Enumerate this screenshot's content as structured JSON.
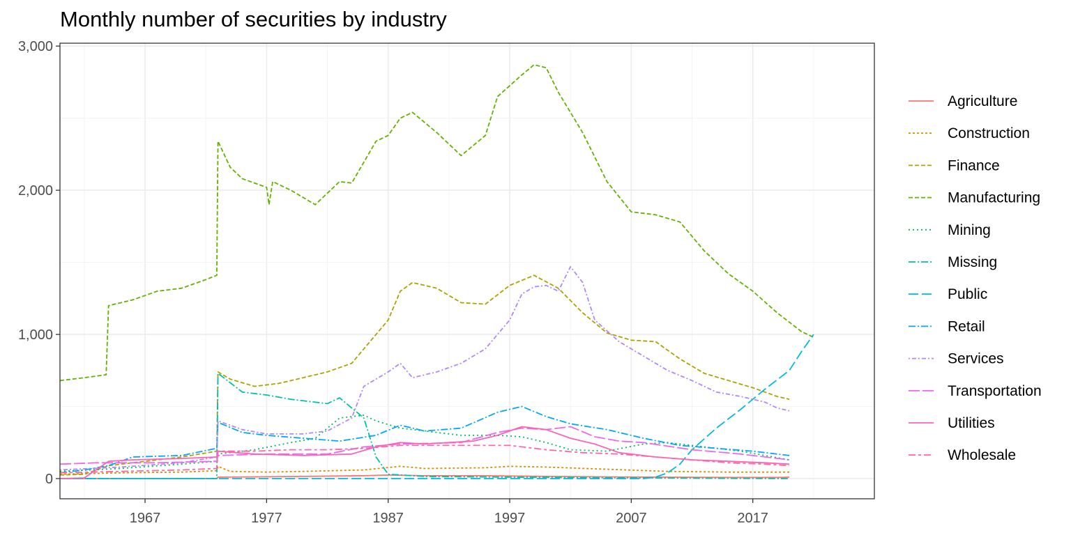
{
  "chart_data": {
    "type": "line",
    "title": "Monthly number of securities by industry",
    "xlabel": "",
    "ylabel": "",
    "xlim": [
      1960,
      2027
    ],
    "ylim": [
      -140,
      3020
    ],
    "x_ticks": [
      1967,
      1977,
      1987,
      1997,
      2007,
      2017
    ],
    "y_ticks": [
      0,
      1000,
      2000,
      3000
    ],
    "y_tick_labels": [
      "0",
      "1,000",
      "2,000",
      "3,000"
    ],
    "grid": true,
    "legend_position": "right",
    "series": [
      {
        "name": "Agriculture",
        "color": "#F8766D",
        "dash": "",
        "points": [
          [
            1960,
            0
          ],
          [
            1972.9,
            0
          ],
          [
            1973,
            10
          ],
          [
            1980,
            15
          ],
          [
            1985,
            20
          ],
          [
            1987,
            25
          ],
          [
            1990,
            20
          ],
          [
            1995,
            20
          ],
          [
            2000,
            15
          ],
          [
            2005,
            12
          ],
          [
            2010,
            10
          ],
          [
            2015,
            8
          ],
          [
            2019,
            8
          ],
          [
            2020,
            10
          ]
        ]
      },
      {
        "name": "Construction",
        "color": "#DB8E00",
        "dash": "3,3",
        "points": [
          [
            1960,
            30
          ],
          [
            1965,
            40
          ],
          [
            1970,
            45
          ],
          [
            1972.9,
            55
          ],
          [
            1973,
            85
          ],
          [
            1974,
            50
          ],
          [
            1977,
            45
          ],
          [
            1980,
            50
          ],
          [
            1985,
            60
          ],
          [
            1988,
            85
          ],
          [
            1990,
            70
          ],
          [
            1995,
            75
          ],
          [
            1997,
            85
          ],
          [
            2000,
            80
          ],
          [
            2005,
            65
          ],
          [
            2010,
            50
          ],
          [
            2015,
            45
          ],
          [
            2020,
            45
          ]
        ]
      },
      {
        "name": "Finance",
        "color": "#AEA200",
        "dash": "6,3",
        "points": [
          [
            1960,
            25
          ],
          [
            1962,
            30
          ],
          [
            1964,
            90
          ],
          [
            1966,
            110
          ],
          [
            1970,
            150
          ],
          [
            1972.9,
            190
          ],
          [
            1973,
            740
          ],
          [
            1974,
            690
          ],
          [
            1976,
            640
          ],
          [
            1978,
            660
          ],
          [
            1980,
            700
          ],
          [
            1982,
            740
          ],
          [
            1984,
            800
          ],
          [
            1986,
            1000
          ],
          [
            1987,
            1100
          ],
          [
            1988,
            1300
          ],
          [
            1989,
            1360
          ],
          [
            1991,
            1320
          ],
          [
            1993,
            1220
          ],
          [
            1995,
            1210
          ],
          [
            1997,
            1340
          ],
          [
            1999,
            1410
          ],
          [
            2001,
            1320
          ],
          [
            2003,
            1150
          ],
          [
            2005,
            1010
          ],
          [
            2007,
            960
          ],
          [
            2009,
            950
          ],
          [
            2011,
            830
          ],
          [
            2013,
            730
          ],
          [
            2015,
            680
          ],
          [
            2017,
            630
          ],
          [
            2019,
            570
          ],
          [
            2020,
            550
          ]
        ]
      },
      {
        "name": "Manufacturing",
        "color": "#64B200",
        "dash": "6,3",
        "points": [
          [
            1960,
            680
          ],
          [
            1962,
            700
          ],
          [
            1963.8,
            720
          ],
          [
            1964,
            1200
          ],
          [
            1966,
            1240
          ],
          [
            1968,
            1300
          ],
          [
            1970,
            1320
          ],
          [
            1972,
            1380
          ],
          [
            1972.9,
            1410
          ],
          [
            1973,
            2340
          ],
          [
            1974,
            2160
          ],
          [
            1975,
            2080
          ],
          [
            1977,
            2020
          ],
          [
            1977.2,
            1900
          ],
          [
            1977.5,
            2060
          ],
          [
            1979,
            2000
          ],
          [
            1981,
            1900
          ],
          [
            1983,
            2060
          ],
          [
            1984,
            2050
          ],
          [
            1986,
            2340
          ],
          [
            1987,
            2380
          ],
          [
            1988,
            2500
          ],
          [
            1989,
            2540
          ],
          [
            1991,
            2400
          ],
          [
            1993,
            2240
          ],
          [
            1995,
            2380
          ],
          [
            1996,
            2650
          ],
          [
            1998,
            2800
          ],
          [
            1999,
            2870
          ],
          [
            2000,
            2850
          ],
          [
            2001,
            2680
          ],
          [
            2003,
            2400
          ],
          [
            2005,
            2060
          ],
          [
            2007,
            1850
          ],
          [
            2009,
            1830
          ],
          [
            2011,
            1780
          ],
          [
            2013,
            1580
          ],
          [
            2015,
            1420
          ],
          [
            2017,
            1300
          ],
          [
            2019,
            1150
          ],
          [
            2021,
            1020
          ],
          [
            2022,
            980
          ]
        ]
      },
      {
        "name": "Mining",
        "color": "#00BD5C",
        "dash": "2,4",
        "points": [
          [
            1960,
            50
          ],
          [
            1965,
            70
          ],
          [
            1970,
            100
          ],
          [
            1972.9,
            120
          ],
          [
            1973,
            170
          ],
          [
            1976,
            200
          ],
          [
            1979,
            250
          ],
          [
            1981,
            280
          ],
          [
            1983,
            420
          ],
          [
            1985,
            440
          ],
          [
            1986,
            400
          ],
          [
            1988,
            350
          ],
          [
            1990,
            330
          ],
          [
            1993,
            300
          ],
          [
            1996,
            300
          ],
          [
            1998,
            290
          ],
          [
            2000,
            250
          ],
          [
            2002,
            200
          ],
          [
            2005,
            190
          ],
          [
            2008,
            240
          ],
          [
            2010,
            250
          ],
          [
            2013,
            220
          ],
          [
            2016,
            190
          ],
          [
            2020,
            130
          ]
        ]
      },
      {
        "name": "Missing",
        "color": "#00C1A7",
        "dash": "10,3,2,3",
        "points": [
          [
            1960,
            0
          ],
          [
            1972.9,
            0
          ],
          [
            1973,
            730
          ],
          [
            1975,
            600
          ],
          [
            1977,
            580
          ],
          [
            1979,
            550
          ],
          [
            1982,
            520
          ],
          [
            1983,
            560
          ],
          [
            1985,
            420
          ],
          [
            1986,
            150
          ],
          [
            1987,
            30
          ],
          [
            1990,
            15
          ],
          [
            1997,
            10
          ],
          [
            2007,
            5
          ],
          [
            2020,
            0
          ]
        ]
      },
      {
        "name": "Public",
        "color": "#00BADE",
        "dash": "14,5",
        "points": [
          [
            1960,
            0
          ],
          [
            2008,
            0
          ],
          [
            2009,
            10
          ],
          [
            2010,
            40
          ],
          [
            2011,
            100
          ],
          [
            2012,
            200
          ],
          [
            2014,
            350
          ],
          [
            2016,
            480
          ],
          [
            2018,
            620
          ],
          [
            2020,
            750
          ],
          [
            2021,
            880
          ],
          [
            2022,
            1000
          ]
        ]
      },
      {
        "name": "Retail",
        "color": "#00A6FF",
        "dash": "10,3,2,3",
        "points": [
          [
            1960,
            40
          ],
          [
            1962,
            60
          ],
          [
            1964,
            90
          ],
          [
            1966,
            150
          ],
          [
            1970,
            160
          ],
          [
            1972.9,
            210
          ],
          [
            1973,
            390
          ],
          [
            1975,
            320
          ],
          [
            1977,
            300
          ],
          [
            1980,
            280
          ],
          [
            1983,
            260
          ],
          [
            1986,
            300
          ],
          [
            1988,
            370
          ],
          [
            1990,
            330
          ],
          [
            1993,
            350
          ],
          [
            1996,
            460
          ],
          [
            1998,
            500
          ],
          [
            2000,
            430
          ],
          [
            2002,
            380
          ],
          [
            2005,
            340
          ],
          [
            2008,
            280
          ],
          [
            2011,
            230
          ],
          [
            2014,
            210
          ],
          [
            2017,
            190
          ],
          [
            2020,
            160
          ]
        ]
      },
      {
        "name": "Services",
        "color": "#B385FF",
        "dash": "2,3,6,3",
        "points": [
          [
            1960,
            60
          ],
          [
            1965,
            80
          ],
          [
            1970,
            110
          ],
          [
            1972.9,
            150
          ],
          [
            1973,
            400
          ],
          [
            1975,
            340
          ],
          [
            1977,
            310
          ],
          [
            1980,
            310
          ],
          [
            1982,
            330
          ],
          [
            1984,
            420
          ],
          [
            1985,
            640
          ],
          [
            1987,
            740
          ],
          [
            1988,
            800
          ],
          [
            1989,
            700
          ],
          [
            1991,
            740
          ],
          [
            1993,
            800
          ],
          [
            1995,
            900
          ],
          [
            1997,
            1100
          ],
          [
            1998,
            1280
          ],
          [
            1999,
            1330
          ],
          [
            2000,
            1340
          ],
          [
            2001,
            1300
          ],
          [
            2002,
            1470
          ],
          [
            2003,
            1360
          ],
          [
            2004,
            1100
          ],
          [
            2006,
            950
          ],
          [
            2008,
            850
          ],
          [
            2010,
            750
          ],
          [
            2012,
            680
          ],
          [
            2014,
            600
          ],
          [
            2016,
            570
          ],
          [
            2018,
            530
          ],
          [
            2019,
            490
          ],
          [
            2020,
            470
          ]
        ]
      },
      {
        "name": "Transportation",
        "color": "#EF67EB",
        "dash": "16,4",
        "points": [
          [
            1960,
            100
          ],
          [
            1963,
            110
          ],
          [
            1968,
            110
          ],
          [
            1972.9,
            120
          ],
          [
            1973,
            160
          ],
          [
            1977,
            170
          ],
          [
            1982,
            170
          ],
          [
            1985,
            220
          ],
          [
            1988,
            240
          ],
          [
            1993,
            250
          ],
          [
            1996,
            320
          ],
          [
            1998,
            350
          ],
          [
            2000,
            340
          ],
          [
            2002,
            360
          ],
          [
            2004,
            290
          ],
          [
            2006,
            260
          ],
          [
            2008,
            250
          ],
          [
            2012,
            200
          ],
          [
            2016,
            170
          ],
          [
            2020,
            130
          ]
        ]
      },
      {
        "name": "Utilities",
        "color": "#FF63B6",
        "dash": "",
        "points": [
          [
            1960,
            0
          ],
          [
            1962,
            5
          ],
          [
            1964,
            120
          ],
          [
            1966,
            130
          ],
          [
            1970,
            140
          ],
          [
            1972.9,
            150
          ],
          [
            1973,
            190
          ],
          [
            1976,
            170
          ],
          [
            1980,
            160
          ],
          [
            1984,
            170
          ],
          [
            1986,
            220
          ],
          [
            1988,
            250
          ],
          [
            1990,
            240
          ],
          [
            1994,
            260
          ],
          [
            1996,
            300
          ],
          [
            1998,
            360
          ],
          [
            2000,
            340
          ],
          [
            2002,
            280
          ],
          [
            2004,
            240
          ],
          [
            2006,
            180
          ],
          [
            2009,
            150
          ],
          [
            2012,
            130
          ],
          [
            2015,
            120
          ],
          [
            2018,
            110
          ],
          [
            2020,
            100
          ]
        ]
      },
      {
        "name": "Wholesale",
        "color": "#FF66A8",
        "dash": "10,4,4,4",
        "points": [
          [
            1960,
            40
          ],
          [
            1965,
            50
          ],
          [
            1970,
            60
          ],
          [
            1972.9,
            70
          ],
          [
            1973,
            190
          ],
          [
            1976,
            190
          ],
          [
            1979,
            200
          ],
          [
            1982,
            200
          ],
          [
            1985,
            210
          ],
          [
            1988,
            230
          ],
          [
            1991,
            230
          ],
          [
            1994,
            230
          ],
          [
            1997,
            230
          ],
          [
            2000,
            200
          ],
          [
            2003,
            180
          ],
          [
            2006,
            170
          ],
          [
            2009,
            150
          ],
          [
            2012,
            130
          ],
          [
            2015,
            110
          ],
          [
            2018,
            100
          ],
          [
            2020,
            90
          ]
        ]
      }
    ]
  }
}
